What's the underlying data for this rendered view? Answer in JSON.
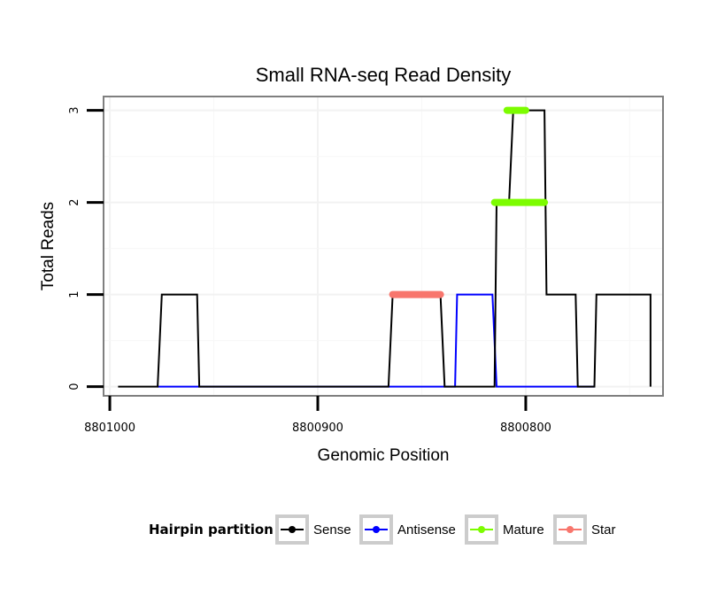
{
  "chart_data": {
    "type": "line",
    "title": "Small RNA-seq Read Density",
    "xlabel": "Genomic Position",
    "ylabel": "Total Reads",
    "x_reversed": true,
    "xlim": [
      8801003,
      8800734
    ],
    "ylim": [
      -0.1,
      3.15
    ],
    "x_ticks": [
      8801000,
      8800900,
      8800800
    ],
    "x_tick_labels": [
      "8801000",
      "8800900",
      "8800800"
    ],
    "y_ticks": [
      0,
      1,
      2,
      3
    ],
    "y_tick_labels": [
      "0",
      "1",
      "2",
      "3"
    ],
    "grid": true,
    "legend": {
      "title": "Hairpin partition",
      "position": "bottom",
      "entries": [
        "Sense",
        "Antisense",
        "Mature",
        "Star"
      ]
    },
    "series": [
      {
        "name": "Sense",
        "color": "#000000",
        "x": [
          8800996,
          8800977,
          8800975,
          8800958,
          8800957,
          8800866,
          8800864,
          8800841,
          8800839,
          8800815,
          8800814,
          8800808,
          8800806,
          8800791,
          8800790,
          8800776,
          8800775,
          8800767,
          8800766,
          8800740,
          8800740
        ],
        "y": [
          0,
          0,
          1,
          1,
          0,
          0,
          1,
          1,
          0,
          0,
          2,
          2,
          3,
          3,
          1,
          1,
          0,
          0,
          1,
          1,
          0
        ]
      },
      {
        "name": "Antisense",
        "color": "#0000ff",
        "x": [
          8800977,
          8800958,
          8800834,
          8800833,
          8800816,
          8800814,
          8800767
        ],
        "y": [
          0,
          0,
          0,
          1,
          1,
          0,
          0
        ]
      },
      {
        "name": "Mature",
        "color": "#7cfc00",
        "x": [
          8800815,
          8800791,
          8800809,
          8800800
        ],
        "y": [
          2,
          2,
          3,
          3
        ],
        "segments": [
          [
            8800815,
            8800791,
            2
          ],
          [
            8800809,
            8800800,
            3
          ]
        ]
      },
      {
        "name": "Star",
        "color": "#f8766d",
        "x": [
          8800864,
          8800841
        ],
        "y": [
          1,
          1
        ],
        "segments": [
          [
            8800864,
            8800841,
            1
          ]
        ]
      }
    ]
  }
}
